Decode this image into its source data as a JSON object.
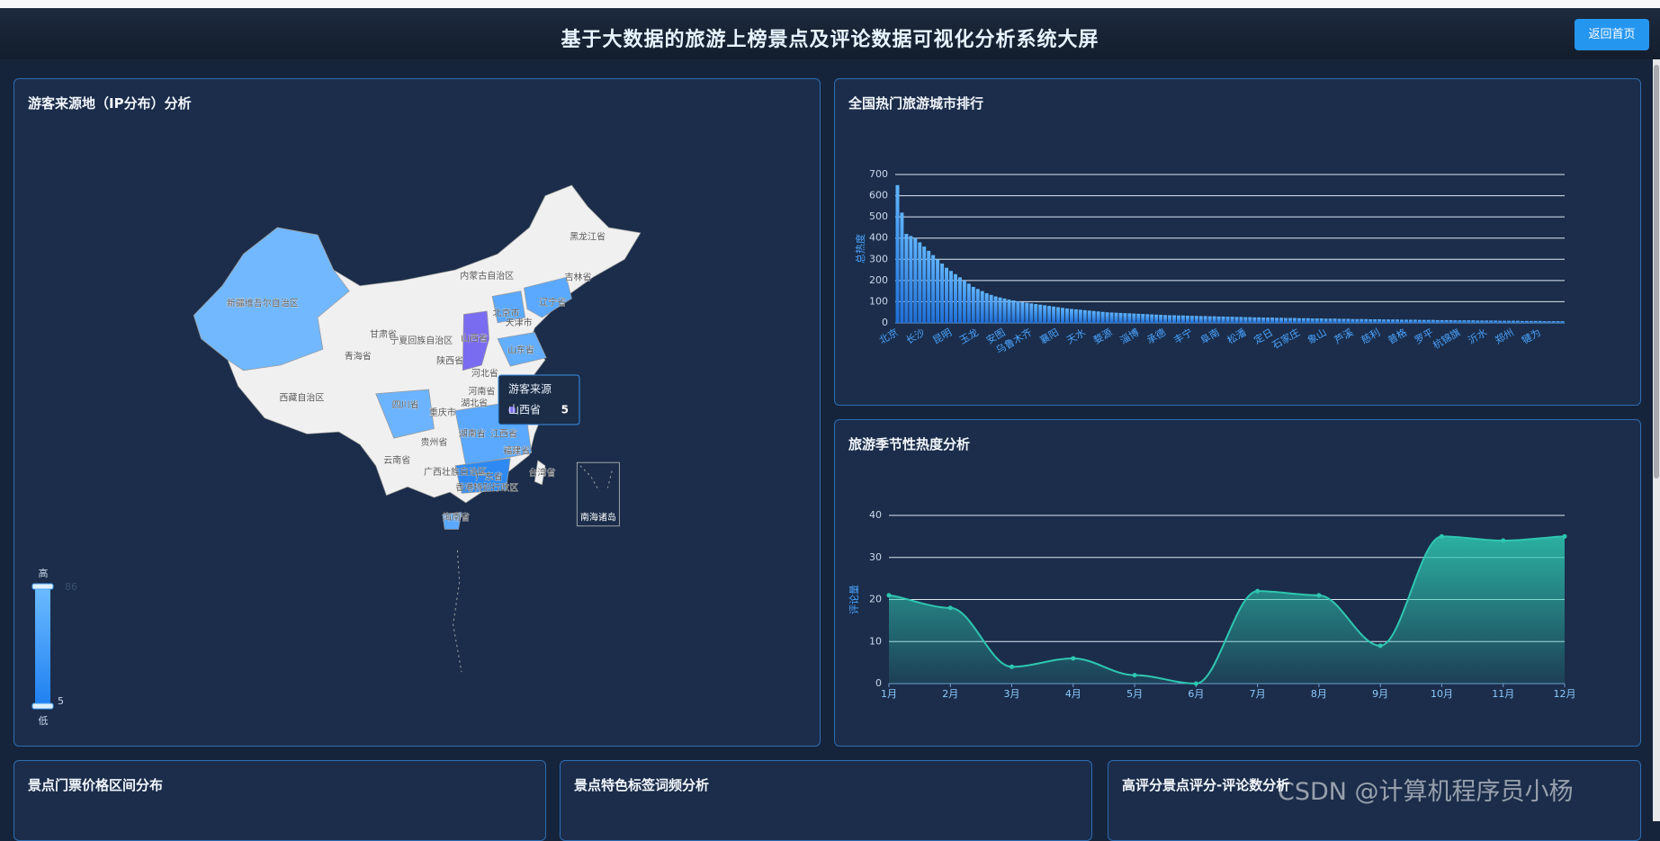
{
  "header": {
    "title": "基于大数据的旅游上榜景点及评论数据可视化分析系统大屏",
    "button": "返回首页"
  },
  "map_panel": {
    "title": "游客来源地（IP分布）分析",
    "labels": [
      "黑龙江省",
      "吉林省",
      "内蒙古自治区",
      "辽宁省",
      "北京市",
      "天津市",
      "河北省",
      "山西省",
      "山东省",
      "新疆维吾尔自治区",
      "青海省",
      "甘肃省",
      "宁夏回族自治区",
      "陕西省",
      "西藏自治区",
      "四川省",
      "重庆市",
      "河南省",
      "湖北省",
      "江西省",
      "湖南省",
      "福建省",
      "贵州省",
      "云南省",
      "广西壮族自治区",
      "广东省",
      "香港特别行政区",
      "台湾省",
      "海南省",
      "南海诸岛"
    ],
    "tooltip": {
      "title": "游客来源",
      "name": "山西省",
      "value": 5
    },
    "visual_map": {
      "high": "高",
      "low": "低",
      "min": 5,
      "max": 86
    }
  },
  "chart_data": [
    {
      "type": "bar",
      "title": "全国热门旅游城市排行",
      "y_label": "总热度",
      "color": "#3d9bf5",
      "ylim": [
        0,
        700
      ],
      "yticks": [
        0,
        100,
        200,
        300,
        400,
        500,
        600,
        700
      ],
      "grid": true,
      "categories": [
        "北京",
        null,
        null,
        null,
        null,
        null,
        "长沙",
        null,
        null,
        null,
        null,
        null,
        "昆明",
        null,
        null,
        null,
        null,
        null,
        "玉龙",
        null,
        null,
        null,
        null,
        null,
        "安图",
        null,
        null,
        null,
        null,
        null,
        "乌鲁木齐",
        null,
        null,
        null,
        null,
        null,
        "襄阳",
        null,
        null,
        null,
        null,
        null,
        "天水",
        null,
        null,
        null,
        null,
        null,
        "婺源",
        null,
        null,
        null,
        null,
        null,
        "淄博",
        null,
        null,
        null,
        null,
        null,
        "承德",
        null,
        null,
        null,
        null,
        null,
        "丰宁",
        null,
        null,
        null,
        null,
        null,
        "阜南",
        null,
        null,
        null,
        null,
        null,
        "松潘",
        null,
        null,
        null,
        null,
        null,
        "定日",
        null,
        null,
        null,
        null,
        null,
        "石家庄",
        null,
        null,
        null,
        null,
        null,
        "象山",
        null,
        null,
        null,
        null,
        null,
        "芦溪",
        null,
        null,
        null,
        null,
        null,
        "慈利",
        null,
        null,
        null,
        null,
        null,
        "普格",
        null,
        null,
        null,
        null,
        null,
        "罗平",
        null,
        null,
        null,
        null,
        null,
        "杭锦旗",
        null,
        null,
        null,
        null,
        null,
        "沂水",
        null,
        null,
        null,
        null,
        null,
        "郑州",
        null,
        null,
        null,
        null,
        null,
        "犍为",
        null,
        null,
        null,
        null,
        null
      ],
      "values": [
        650,
        520,
        420,
        410,
        400,
        380,
        360,
        340,
        320,
        300,
        280,
        260,
        245,
        230,
        215,
        200,
        185,
        170,
        160,
        150,
        140,
        132,
        125,
        120,
        115,
        110,
        106,
        102,
        98,
        95,
        92,
        89,
        86,
        83,
        80,
        77,
        74,
        71,
        68,
        66,
        64,
        62,
        60,
        58,
        56,
        54,
        52,
        50,
        49,
        48,
        47,
        46,
        45,
        44,
        43,
        42,
        41,
        40,
        39,
        38,
        37,
        36,
        36,
        35,
        35,
        34,
        33,
        33,
        32,
        32,
        31,
        31,
        30,
        30,
        29,
        29,
        28,
        28,
        27,
        27,
        26,
        26,
        25,
        25,
        25,
        24,
        24,
        23,
        23,
        23,
        22,
        22,
        22,
        21,
        21,
        21,
        20,
        20,
        20,
        19,
        19,
        19,
        18,
        18,
        18,
        18,
        17,
        17,
        17,
        16,
        16,
        16,
        16,
        15,
        15,
        15,
        15,
        14,
        14,
        14,
        14,
        13,
        13,
        13,
        13,
        12,
        12,
        12,
        12,
        12,
        11,
        11,
        11,
        11,
        11,
        10,
        10,
        10,
        10,
        10,
        9,
        9,
        9,
        9,
        9,
        8,
        8,
        8,
        8,
        8
      ]
    },
    {
      "type": "line",
      "title": "旅游季节性热度分析",
      "y_label": "评论量",
      "color": "#2ec7b0",
      "ylim": [
        0,
        40
      ],
      "yticks": [
        0,
        10,
        20,
        30,
        40
      ],
      "grid": true,
      "smooth": true,
      "area": true,
      "categories": [
        "1月",
        "2月",
        "3月",
        "4月",
        "5月",
        "6月",
        "7月",
        "8月",
        "9月",
        "10月",
        "11月",
        "12月"
      ],
      "values": [
        21,
        18,
        4,
        6,
        2,
        0,
        22,
        21,
        9,
        35,
        34,
        35
      ]
    }
  ],
  "bottom_panels": [
    "景点门票价格区间分布",
    "景点特色标签词频分析",
    "高评分景点评分-评论数分析"
  ],
  "watermark": "CSDN @计算机程序员小杨"
}
